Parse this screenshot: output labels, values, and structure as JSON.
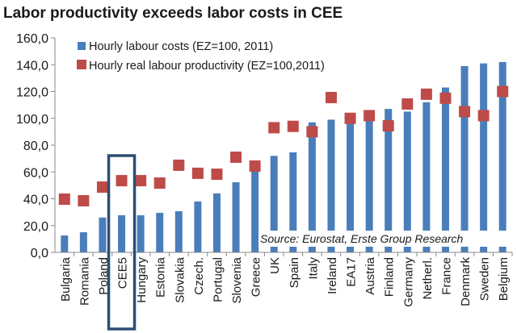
{
  "chart_data": {
    "type": "bar",
    "title": "Labor productivity exceeds labor costs in CEE",
    "categories": [
      "Bulgaria",
      "Romania",
      "Poland",
      "CEE5",
      "Hungary",
      "Estonia",
      "Slovakia",
      "Czech.",
      "Portugal",
      "Slovenia",
      "Greece",
      "UK",
      "Spain",
      "Italy",
      "Ireland",
      "EA17",
      "Austria",
      "Finland",
      "Germany",
      "Netherl.",
      "France",
      "Denmark",
      "Sweden",
      "Belgium"
    ],
    "series": [
      {
        "name": "Hourly labour costs (EZ=100, 2011)",
        "type": "bar",
        "color": "#4a7ebb",
        "values": [
          12.6,
          15,
          26,
          27.7,
          27.7,
          29.5,
          30.7,
          38,
          44,
          52.3,
          62.5,
          72,
          74.6,
          97,
          99,
          98,
          100,
          107,
          105,
          112,
          123,
          139,
          141,
          142
        ]
      },
      {
        "name": "Hourly real labour productivity (EZ=100,2011)",
        "type": "marker",
        "color": "#be4b48",
        "values": [
          39.7,
          38.5,
          48.7,
          53.5,
          53.5,
          51.7,
          65,
          59,
          58.3,
          71,
          64.4,
          93,
          94,
          90,
          115.5,
          100,
          102,
          94.4,
          110.7,
          118,
          115,
          105,
          102,
          120
        ]
      }
    ],
    "ylim": [
      0,
      160
    ],
    "yticks": [
      "0,0",
      "20,0",
      "40,0",
      "60,0",
      "80,0",
      "100,0",
      "120,0",
      "140,0",
      "160,0"
    ],
    "highlight": "CEE5",
    "legend_position": "top-left",
    "annotation": "Source: Eurostat, Erste Group Research"
  }
}
